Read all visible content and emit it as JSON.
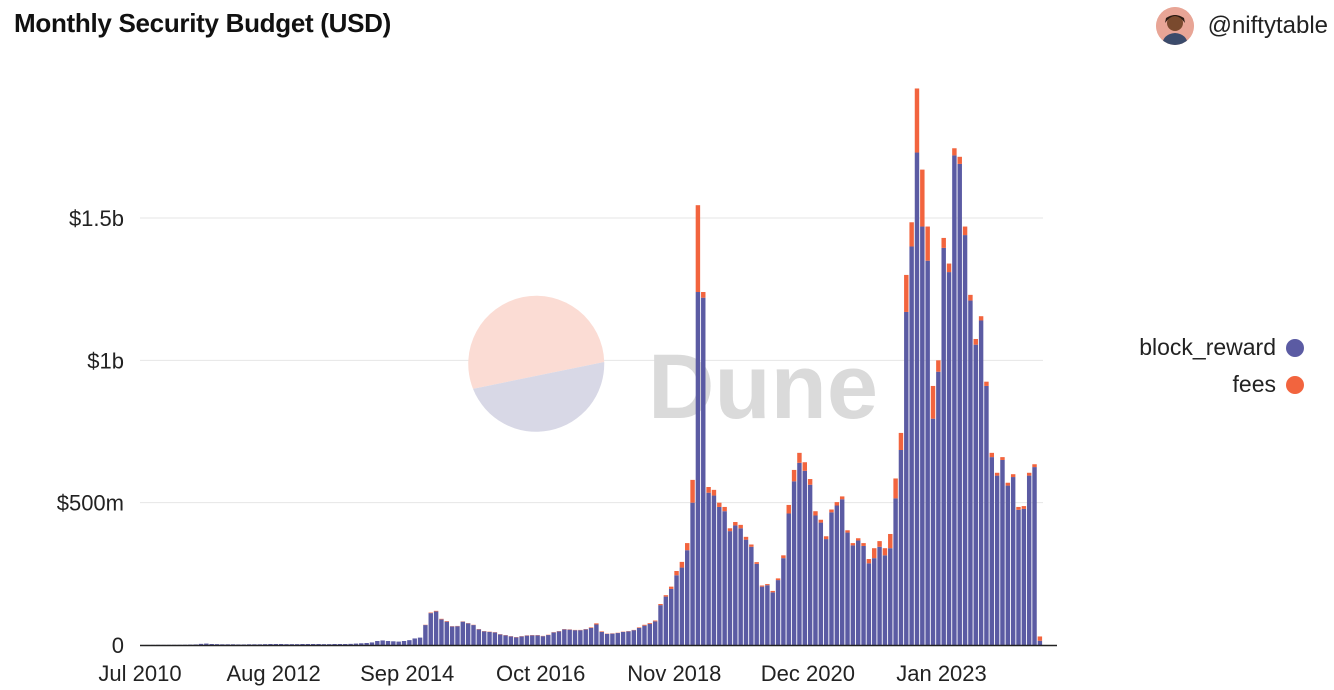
{
  "header": {
    "title": "Monthly Security Budget (USD)",
    "author": "@niftytable",
    "avatar_icon": "user-avatar-icon"
  },
  "watermark": {
    "text": "Dune"
  },
  "colors": {
    "block_reward": "#5b5ba3",
    "fees": "#f2643e",
    "grid": "#e6e6e6",
    "axis": "#222222",
    "watermark_text": "#dadada",
    "watermark_top": "#fbdcd4",
    "watermark_bottom": "#d8d8e6"
  },
  "chart_data": {
    "type": "bar",
    "stacked": true,
    "title": "Monthly Security Budget (USD)",
    "xlabel": "",
    "ylabel": "",
    "x_start": "Jul 2010",
    "x_ticks": [
      "Jul 2010",
      "Aug 2012",
      "Sep 2014",
      "Oct 2016",
      "Nov 2018",
      "Dec 2020",
      "Jan 2023"
    ],
    "y_ticks": [
      {
        "value": 0,
        "label": "0"
      },
      {
        "value": 500,
        "label": "$500m"
      },
      {
        "value": 1000,
        "label": "$1b"
      },
      {
        "value": 1500,
        "label": "$1.5b"
      }
    ],
    "y_unit": "million USD",
    "ylim": [
      0,
      2000
    ],
    "grid": true,
    "legend_position": "right",
    "series": [
      {
        "name": "block_reward",
        "values": [
          0.1,
          0.2,
          0.3,
          0.5,
          0.4,
          0.5,
          0.6,
          0.7,
          0.9,
          1.5,
          2,
          4,
          5,
          3.5,
          3,
          2.5,
          2.5,
          2.5,
          2,
          2,
          2.5,
          2.5,
          2.5,
          3,
          3.5,
          3.5,
          3.5,
          3,
          3,
          3,
          3.5,
          3.5,
          3.5,
          3.5,
          3,
          3,
          3.5,
          3.5,
          3.5,
          4,
          5,
          6,
          7,
          9,
          14,
          16,
          14,
          13,
          12,
          14,
          17,
          23,
          26,
          70,
          112,
          118,
          90,
          82,
          65,
          66,
          82,
          76,
          70,
          55,
          48,
          46,
          44,
          37,
          34,
          30,
          27,
          30,
          33,
          34,
          34,
          31,
          35,
          44,
          48,
          55,
          54,
          52,
          52,
          55,
          60,
          72,
          46,
          39,
          40,
          42,
          46,
          48,
          52,
          60,
          68,
          74,
          83,
          140,
          170,
          197,
          245,
          272,
          333,
          500,
          1240,
          1220,
          535,
          525,
          485,
          470,
          400,
          420,
          410,
          370,
          345,
          285,
          205,
          210,
          185,
          228,
          305,
          462,
          575,
          640,
          612,
          563,
          455,
          430,
          372,
          466,
          490,
          512,
          395,
          350,
          367,
          348,
          287,
          305,
          345,
          315,
          340,
          515,
          685,
          1170,
          1400,
          1730,
          1470,
          1350,
          795,
          960,
          1395,
          1310,
          1720,
          1690,
          1440,
          1210,
          1055,
          1140,
          910,
          660,
          595,
          650,
          560,
          590,
          475,
          478,
          595,
          625,
          15
        ]
      },
      {
        "name": "fees",
        "values": [
          0,
          0,
          0,
          0,
          0,
          0,
          0,
          0,
          0,
          0,
          0,
          0,
          0,
          0,
          0,
          0,
          0,
          0,
          0,
          0,
          0,
          0,
          0,
          0,
          0,
          0,
          0,
          0,
          0,
          0,
          0,
          0,
          0,
          0,
          0,
          0,
          0,
          0,
          0,
          0,
          0,
          0,
          0,
          0,
          0,
          0,
          0,
          0,
          0,
          0,
          0,
          0,
          0,
          1,
          2,
          2,
          2,
          2,
          1,
          1,
          1,
          1,
          1,
          1,
          1,
          1,
          1,
          1,
          1,
          1,
          1,
          1,
          1,
          1,
          1,
          1,
          1,
          1,
          1,
          1,
          1,
          1,
          1,
          1,
          2,
          4,
          2,
          1,
          1,
          1,
          1,
          1,
          1,
          2,
          3,
          3,
          3,
          4,
          5,
          8,
          15,
          20,
          25,
          80,
          305,
          20,
          20,
          20,
          15,
          15,
          10,
          12,
          12,
          10,
          8,
          6,
          4,
          4,
          5,
          6,
          10,
          30,
          40,
          35,
          30,
          20,
          15,
          10,
          10,
          10,
          12,
          10,
          8,
          8,
          8,
          10,
          15,
          35,
          20,
          25,
          50,
          70,
          60,
          130,
          85,
          225,
          200,
          120,
          115,
          40,
          35,
          30,
          25,
          25,
          30,
          20,
          20,
          15,
          15,
          15,
          10,
          10,
          10,
          10,
          10,
          10,
          10,
          10,
          15,
          2
        ]
      }
    ]
  }
}
